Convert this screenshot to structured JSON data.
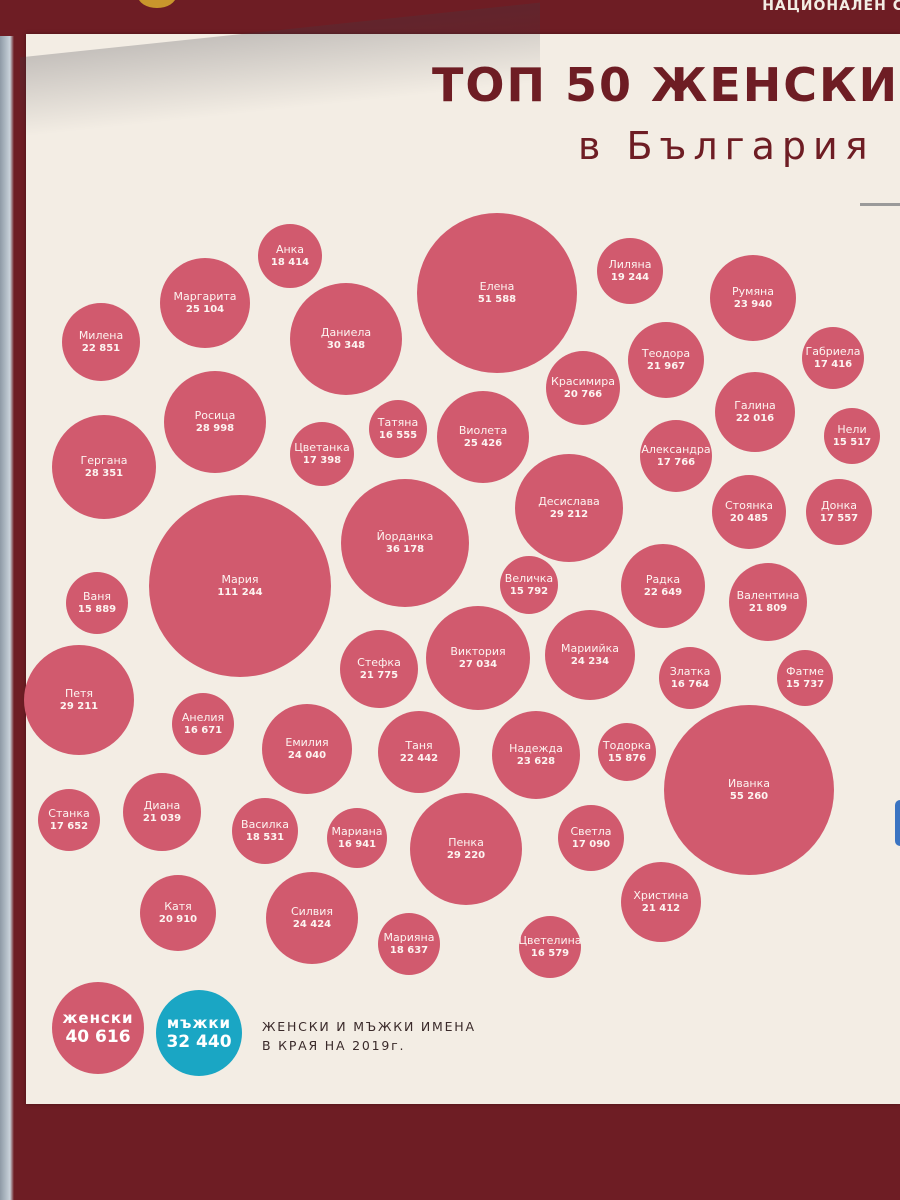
{
  "header": {
    "org": "НАЦИОНАЛЕН С"
  },
  "title": "ТОП 50 ЖЕНСКИ",
  "subtitle": "в България",
  "colors": {
    "female": "#d15a6e",
    "male": "#1aa6c4",
    "frame": "#6e1d24",
    "paper": "#f3ede4"
  },
  "bubbles": [
    {
      "name": "Анка",
      "count": "18 414"
    },
    {
      "name": "Елена",
      "count": "51 588"
    },
    {
      "name": "Лиляна",
      "count": "19 244"
    },
    {
      "name": "Маргарита",
      "count": "25 104"
    },
    {
      "name": "Румяна",
      "count": "23 940"
    },
    {
      "name": "Даниела",
      "count": "30 348"
    },
    {
      "name": "Милена",
      "count": "22 851"
    },
    {
      "name": "Теодора",
      "count": "21 967"
    },
    {
      "name": "Габриела",
      "count": "17 416"
    },
    {
      "name": "Красимира",
      "count": "20 766"
    },
    {
      "name": "Росица",
      "count": "28 998"
    },
    {
      "name": "Татяна",
      "count": "16 555"
    },
    {
      "name": "Галина",
      "count": "22 016"
    },
    {
      "name": "Виолета",
      "count": "25 426"
    },
    {
      "name": "Нели",
      "count": "15 517"
    },
    {
      "name": "Цветанка",
      "count": "17 398"
    },
    {
      "name": "Гергана",
      "count": "28 351"
    },
    {
      "name": "Александра",
      "count": "17 766"
    },
    {
      "name": "Десислава",
      "count": "29 212"
    },
    {
      "name": "Стоянка",
      "count": "20 485"
    },
    {
      "name": "Донка",
      "count": "17 557"
    },
    {
      "name": "Йорданка",
      "count": "36 178"
    },
    {
      "name": "Мария",
      "count": "111 244"
    },
    {
      "name": "Величка",
      "count": "15 792"
    },
    {
      "name": "Радка",
      "count": "22 649"
    },
    {
      "name": "Ваня",
      "count": "15 889"
    },
    {
      "name": "Валентина",
      "count": "21 809"
    },
    {
      "name": "Мариийка",
      "count": "24 234"
    },
    {
      "name": "Стефка",
      "count": "21 775"
    },
    {
      "name": "Виктория",
      "count": "27 034"
    },
    {
      "name": "Петя",
      "count": "29 211"
    },
    {
      "name": "Златка",
      "count": "16 764"
    },
    {
      "name": "Фатме",
      "count": "15 737"
    },
    {
      "name": "Анелия",
      "count": "16 671"
    },
    {
      "name": "Емилия",
      "count": "24 040"
    },
    {
      "name": "Таня",
      "count": "22 442"
    },
    {
      "name": "Надежда",
      "count": "23 628"
    },
    {
      "name": "Тодорка",
      "count": "15 876"
    },
    {
      "name": "Иванка",
      "count": "55 260"
    },
    {
      "name": "Станка",
      "count": "17 652"
    },
    {
      "name": "Диана",
      "count": "21 039"
    },
    {
      "name": "Василка",
      "count": "18 531"
    },
    {
      "name": "Мариана",
      "count": "16 941"
    },
    {
      "name": "Пенка",
      "count": "29 220"
    },
    {
      "name": "Светла",
      "count": "17 090"
    },
    {
      "name": "Христина",
      "count": "21 412"
    },
    {
      "name": "Катя",
      "count": "20 910"
    },
    {
      "name": "Силвия",
      "count": "24 424"
    },
    {
      "name": "Марияна",
      "count": "18 637"
    },
    {
      "name": "Цветелина",
      "count": "16 579"
    }
  ],
  "legend": {
    "female_label": "женски",
    "female_value": "40 616",
    "male_label": "мъжки",
    "male_value": "32 440"
  },
  "note": {
    "line1": "ЖЕНСКИ И МЪЖКИ ИМЕНА",
    "line2": "В КРАЯ НА 2019г."
  }
}
